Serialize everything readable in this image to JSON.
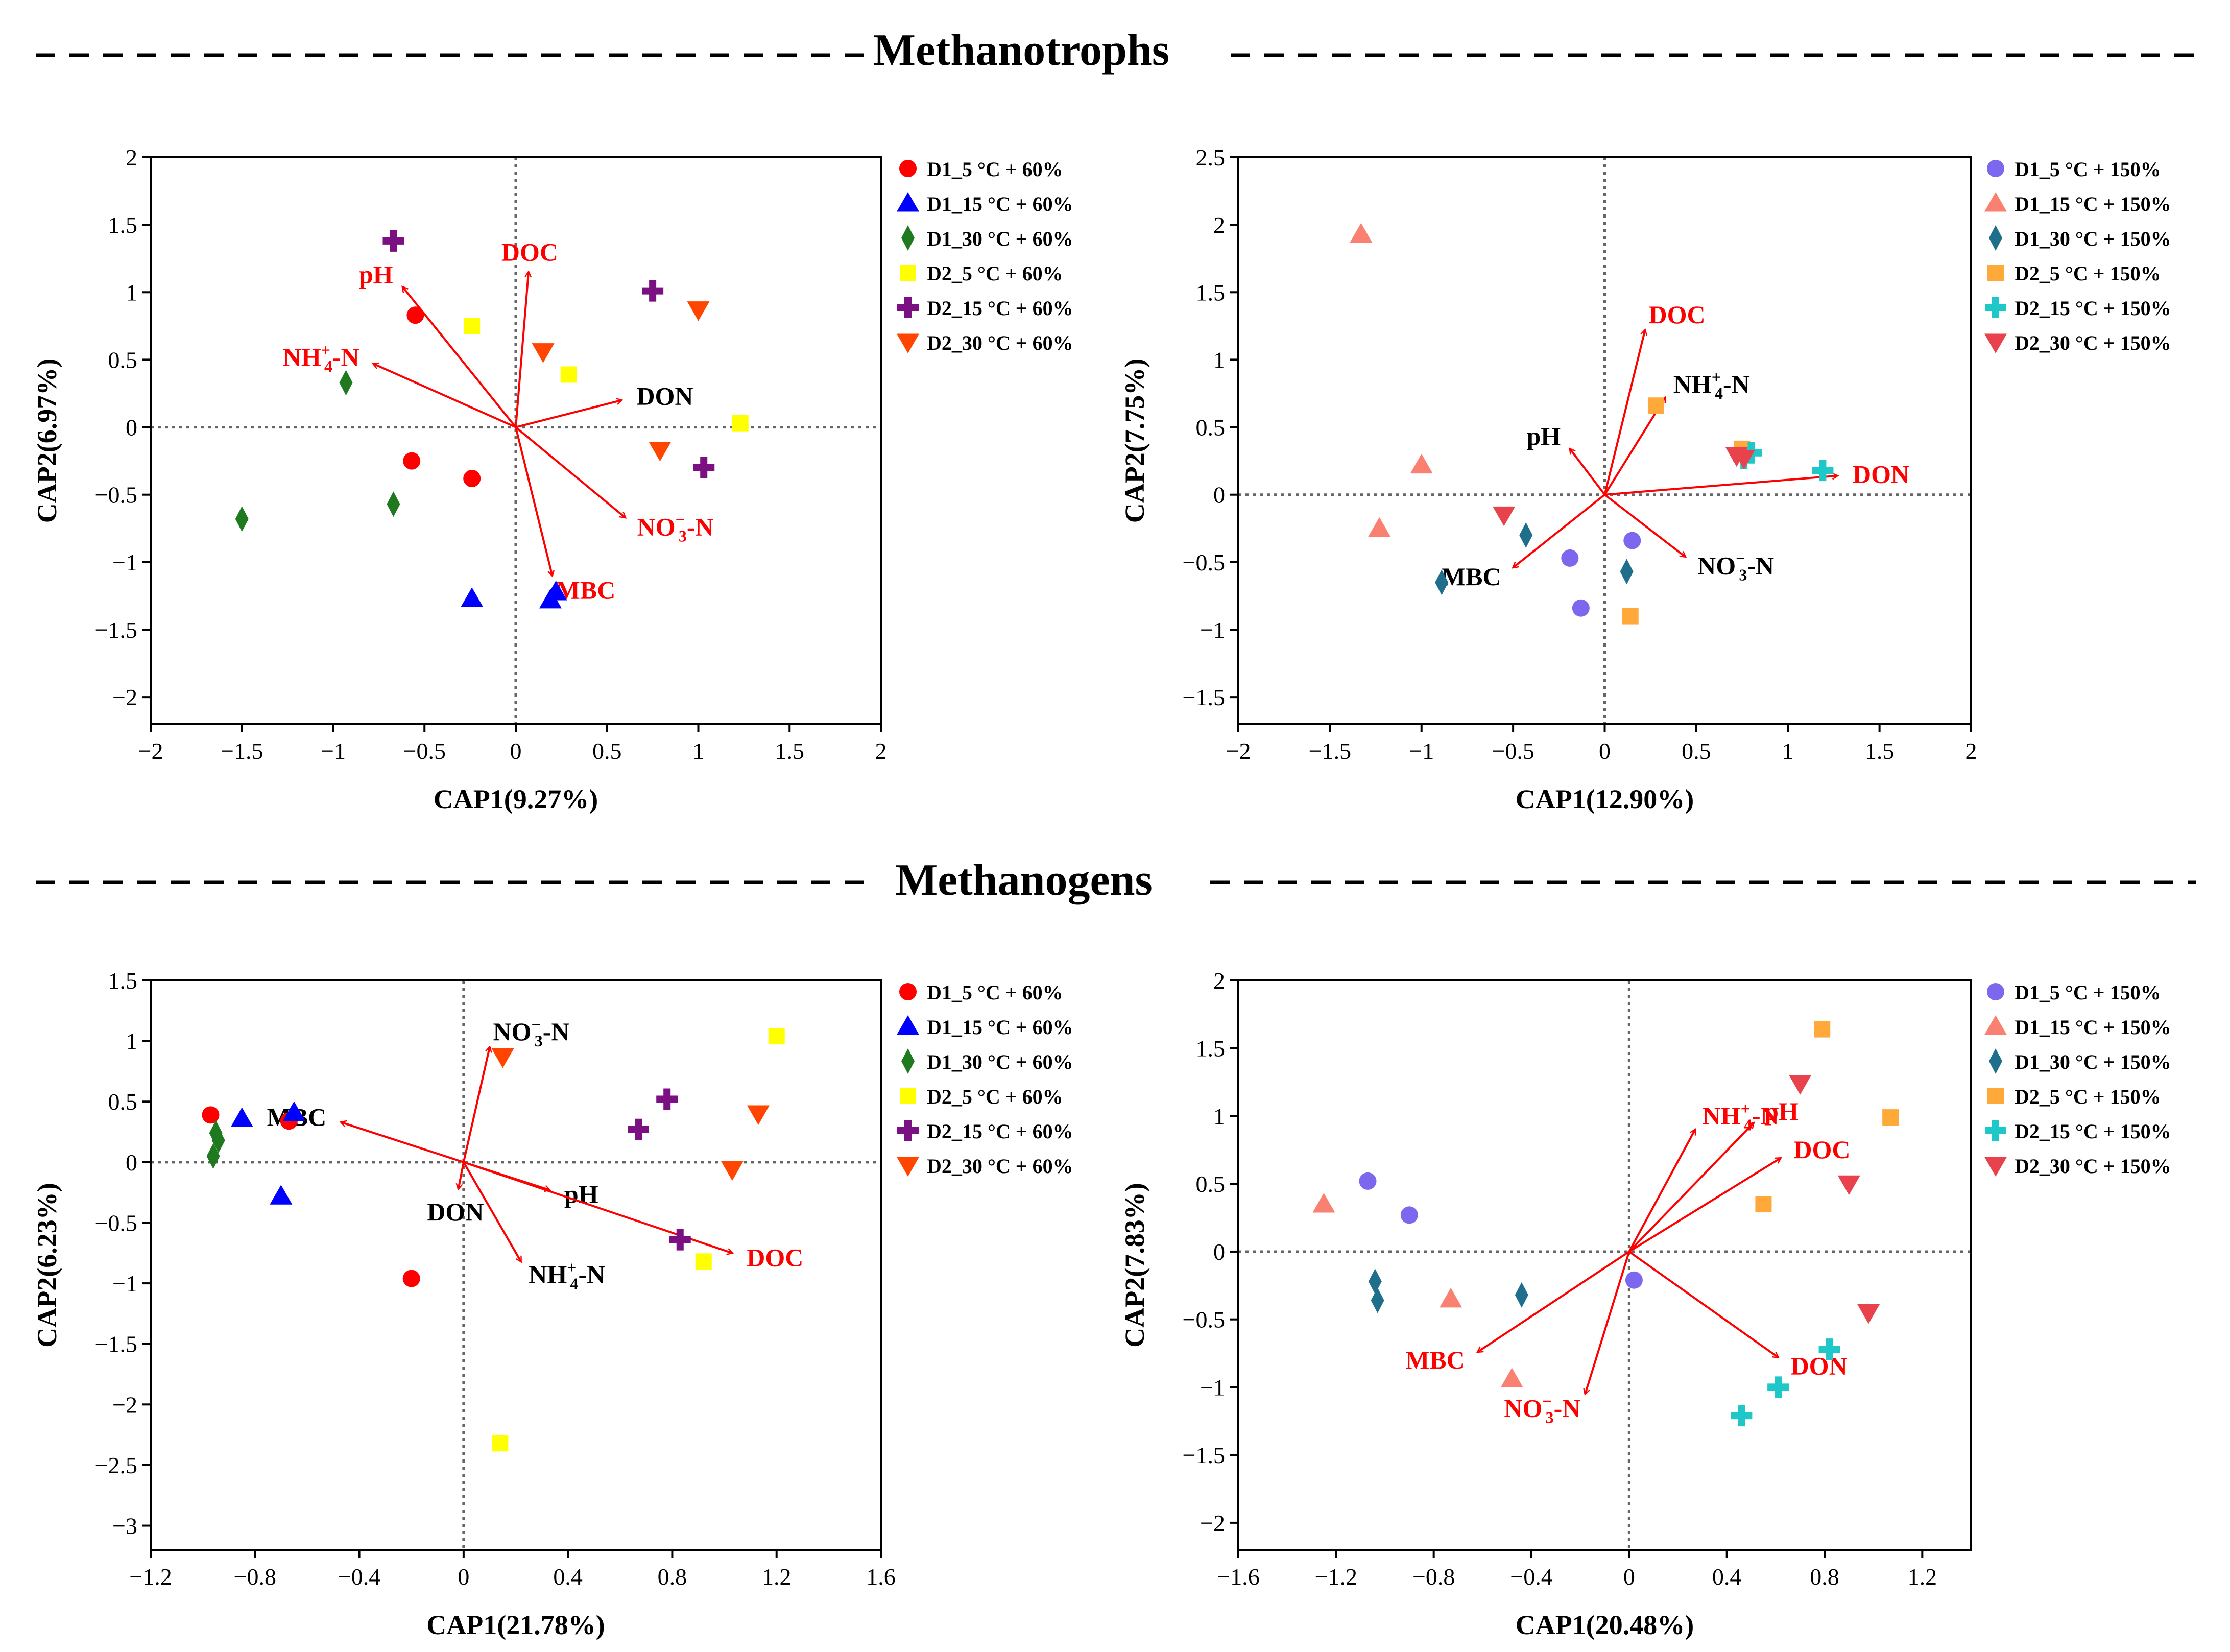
{
  "sections": {
    "top": "Methanotrophs",
    "bottom": "Methanogens"
  },
  "colors": {
    "red": "#ff0000",
    "blue": "#0000ff",
    "green": "#1f7a1f",
    "yellow": "#ffff00",
    "purple": "#7b1082",
    "orange_red": "#ff4500",
    "medium_purple": "#7b68ee",
    "salmon": "#fa8072",
    "teal": "#1f6e8c",
    "orange": "#ffa93a",
    "cyan": "#1ec8c8",
    "crimson": "#e8424c",
    "arrow": "#ff0000",
    "axis": "#000000"
  },
  "chart_data": [
    {
      "type": "scatter",
      "section": "Methanotrophs",
      "xlabel": "CAP1(9.27%)",
      "ylabel": "CAP2(6.97%)",
      "xlim": [
        -2,
        2
      ],
      "ylim": [
        -2.2,
        2
      ],
      "xticks": [
        -2,
        -1.5,
        -1,
        -0.5,
        0,
        0.5,
        1,
        1.5,
        2
      ],
      "xtick_labels": [
        "−2",
        "−1.5",
        "−1",
        "−0.5",
        "0",
        "0.5",
        "1",
        "1.5",
        "2"
      ],
      "yticks": [
        -2,
        -1.5,
        -1,
        -0.5,
        0,
        0.5,
        1,
        1.5,
        2
      ],
      "ytick_labels": [
        "−2",
        "−1.5",
        "−1",
        "−0.5",
        "0",
        "0.5",
        "1",
        "1.5",
        "2"
      ],
      "legend_position": "outside-right",
      "series": [
        {
          "name": "D1_5 °C + 60%",
          "marker": "circle",
          "color": "red",
          "points": [
            [
              -0.55,
              0.83
            ],
            [
              -0.57,
              -0.25
            ],
            [
              -0.24,
              -0.38
            ]
          ]
        },
        {
          "name": "D1_15 °C + 60%",
          "marker": "triangle",
          "color": "blue",
          "points": [
            [
              -0.24,
              -1.27
            ],
            [
              0.19,
              -1.28
            ],
            [
              0.22,
              -1.22
            ]
          ]
        },
        {
          "name": "D1_30 °C + 60%",
          "marker": "diamond",
          "color": "green",
          "points": [
            [
              -0.93,
              0.33
            ],
            [
              -0.67,
              -0.57
            ],
            [
              -1.5,
              -0.68
            ]
          ]
        },
        {
          "name": "D2_5 °C + 60%",
          "marker": "square",
          "color": "yellow",
          "points": [
            [
              -0.24,
              0.75
            ],
            [
              0.29,
              0.39
            ],
            [
              1.23,
              0.03
            ]
          ]
        },
        {
          "name": "D2_15 °C + 60%",
          "marker": "plus",
          "color": "purple",
          "points": [
            [
              -0.67,
              1.38
            ],
            [
              0.75,
              1.01
            ],
            [
              1.03,
              -0.3
            ]
          ]
        },
        {
          "name": "D2_30 °C + 60%",
          "marker": "triangle-down",
          "color": "orange_red",
          "points": [
            [
              0.15,
              0.56
            ],
            [
              1.0,
              0.87
            ],
            [
              0.79,
              -0.17
            ]
          ]
        }
      ],
      "arrows": [
        {
          "label": "pH",
          "x": -0.62,
          "y": 1.04,
          "color": "red"
        },
        {
          "label": "DOC",
          "x": 0.07,
          "y": 1.15,
          "color": "red"
        },
        {
          "label": "NH₄⁺-N",
          "x": -0.78,
          "y": 0.47,
          "color": "red"
        },
        {
          "label": "DON",
          "x": 0.58,
          "y": 0.2,
          "color": "black"
        },
        {
          "label": "NO₃⁻-N",
          "x": 0.6,
          "y": -0.67,
          "color": "red"
        },
        {
          "label": "MBC",
          "x": 0.2,
          "y": -1.1,
          "color": "red"
        }
      ]
    },
    {
      "type": "scatter",
      "section": "Methanotrophs",
      "xlabel": "CAP1(12.90%)",
      "ylabel": "CAP2(7.75%)",
      "xlim": [
        -2,
        2
      ],
      "ylim": [
        -1.7,
        2.5
      ],
      "xticks": [
        -2,
        -1.5,
        -1,
        -0.5,
        0,
        0.5,
        1,
        1.5,
        2
      ],
      "xtick_labels": [
        "−2",
        "−1.5",
        "−1",
        "−0.5",
        "0",
        "0.5",
        "1",
        "1.5",
        "2"
      ],
      "yticks": [
        -1.5,
        -1,
        -0.5,
        0,
        0.5,
        1,
        1.5,
        2,
        2.5
      ],
      "ytick_labels": [
        "−1.5",
        "−1",
        "−0.5",
        "0",
        "0.5",
        "1",
        "1.5",
        "2",
        "2.5"
      ],
      "legend_position": "outside-right",
      "series": [
        {
          "name": "D1_5 °C + 150%",
          "marker": "circle",
          "color": "medium_purple",
          "points": [
            [
              -0.19,
              -0.47
            ],
            [
              -0.13,
              -0.84
            ],
            [
              0.15,
              -0.34
            ]
          ]
        },
        {
          "name": "D1_15 °C + 150%",
          "marker": "triangle",
          "color": "salmon",
          "points": [
            [
              -1.33,
              1.93
            ],
            [
              -1.0,
              0.22
            ],
            [
              -1.23,
              -0.25
            ]
          ]
        },
        {
          "name": "D1_30 °C + 150%",
          "marker": "diamond",
          "color": "teal",
          "points": [
            [
              -0.89,
              -0.65
            ],
            [
              -0.43,
              -0.3
            ],
            [
              0.12,
              -0.57
            ]
          ]
        },
        {
          "name": "D2_5 °C + 150%",
          "marker": "square",
          "color": "orange",
          "points": [
            [
              0.28,
              0.66
            ],
            [
              0.75,
              0.34
            ],
            [
              0.14,
              -0.9
            ]
          ]
        },
        {
          "name": "D2_15 °C + 150%",
          "marker": "plus",
          "color": "cyan",
          "points": [
            [
              0.76,
              0.27
            ],
            [
              0.8,
              0.31
            ],
            [
              1.19,
              0.18
            ]
          ]
        },
        {
          "name": "D2_30 °C + 150%",
          "marker": "triangle-down",
          "color": "crimson",
          "points": [
            [
              -0.55,
              -0.15
            ],
            [
              0.72,
              0.29
            ],
            [
              0.76,
              0.27
            ]
          ]
        }
      ],
      "arrows": [
        {
          "label": "DOC",
          "x": 0.22,
          "y": 1.22,
          "color": "red"
        },
        {
          "label": "NH₄⁺-N",
          "x": 0.33,
          "y": 0.72,
          "color": "black"
        },
        {
          "label": "pH",
          "x": -0.19,
          "y": 0.34,
          "color": "black"
        },
        {
          "label": "DON",
          "x": 1.27,
          "y": 0.14,
          "color": "red"
        },
        {
          "label": "NO₃⁻-N",
          "x": 0.44,
          "y": -0.46,
          "color": "black"
        },
        {
          "label": "MBC",
          "x": -0.5,
          "y": -0.54,
          "color": "black"
        }
      ]
    },
    {
      "type": "scatter",
      "section": "Methanogens",
      "xlabel": "CAP1(21.78%)",
      "ylabel": "CAP2(6.23%)",
      "xlim": [
        -1.2,
        1.6
      ],
      "ylim": [
        -3.2,
        1.5
      ],
      "xticks": [
        -1.2,
        -0.8,
        -0.4,
        0,
        0.4,
        0.8,
        1.2,
        1.6
      ],
      "xtick_labels": [
        "−1.2",
        "−0.8",
        "−0.4",
        "0",
        "0.4",
        "0.8",
        "1.2",
        "1.6"
      ],
      "yticks": [
        -3,
        -2.5,
        -2,
        -1.5,
        -1,
        -0.5,
        0,
        0.5,
        1,
        1.5
      ],
      "ytick_labels": [
        "−3",
        "−2.5",
        "−2",
        "−1.5",
        "−1",
        "−0.5",
        "0",
        "0.5",
        "1",
        "1.5"
      ],
      "legend_position": "outside-right",
      "series": [
        {
          "name": "D1_5 °C + 60%",
          "marker": "circle",
          "color": "red",
          "points": [
            [
              -0.97,
              0.39
            ],
            [
              -0.67,
              0.34
            ],
            [
              -0.2,
              -0.96
            ]
          ]
        },
        {
          "name": "D1_15 °C + 60%",
          "marker": "triangle",
          "color": "blue",
          "points": [
            [
              -0.85,
              0.36
            ],
            [
              -0.65,
              0.41
            ],
            [
              -0.7,
              -0.28
            ]
          ]
        },
        {
          "name": "D1_30 °C + 60%",
          "marker": "diamond",
          "color": "green",
          "points": [
            [
              -0.95,
              0.24
            ],
            [
              -0.94,
              0.18
            ],
            [
              -0.96,
              0.05
            ]
          ]
        },
        {
          "name": "D2_5 °C + 60%",
          "marker": "square",
          "color": "yellow",
          "points": [
            [
              1.2,
              1.04
            ],
            [
              0.92,
              -0.82
            ],
            [
              0.14,
              -2.32
            ]
          ]
        },
        {
          "name": "D2_15 °C + 60%",
          "marker": "plus",
          "color": "purple",
          "points": [
            [
              0.78,
              0.52
            ],
            [
              0.67,
              0.27
            ],
            [
              0.83,
              -0.64
            ]
          ]
        },
        {
          "name": "D2_30 °C + 60%",
          "marker": "triangle-down",
          "color": "orange_red",
          "points": [
            [
              0.15,
              0.87
            ],
            [
              1.13,
              0.4
            ],
            [
              1.03,
              -0.06
            ]
          ]
        }
      ],
      "arrows": [
        {
          "label": "NO₃⁻-N",
          "x": 0.1,
          "y": 0.95,
          "color": "black"
        },
        {
          "label": "MBC",
          "x": -0.47,
          "y": 0.33,
          "color": "black"
        },
        {
          "label": "DON",
          "x": -0.02,
          "y": -0.22,
          "color": "black"
        },
        {
          "label": "pH",
          "x": 0.33,
          "y": -0.23,
          "color": "black"
        },
        {
          "label": "NH₄⁺-N",
          "x": 0.22,
          "y": -0.82,
          "color": "black"
        },
        {
          "label": "DOC",
          "x": 1.03,
          "y": -0.75,
          "color": "red"
        }
      ]
    },
    {
      "type": "scatter",
      "section": "Methanogens",
      "xlabel": "CAP1(20.48%)",
      "ylabel": "CAP2(7.83%)",
      "xlim": [
        -1.6,
        1.4
      ],
      "ylim": [
        -2.2,
        2
      ],
      "xticks": [
        -1.6,
        -1.2,
        -0.8,
        -0.4,
        0,
        0.4,
        0.8,
        1.2
      ],
      "xtick_labels": [
        "−1.6",
        "−1.2",
        "−0.8",
        "−0.4",
        "0",
        "0.4",
        "0.8",
        "1.2"
      ],
      "yticks": [
        -2,
        -1.5,
        -1,
        -0.5,
        0,
        0.5,
        1,
        1.5,
        2
      ],
      "ytick_labels": [
        "−2",
        "−1.5",
        "−1",
        "−0.5",
        "0",
        "0.5",
        "1",
        "1.5",
        "2"
      ],
      "legend_position": "outside-right",
      "series": [
        {
          "name": "D1_5 °C + 150%",
          "marker": "circle",
          "color": "medium_purple",
          "points": [
            [
              -1.07,
              0.52
            ],
            [
              -0.9,
              0.27
            ],
            [
              0.02,
              -0.21
            ]
          ]
        },
        {
          "name": "D1_15 °C + 150%",
          "marker": "triangle",
          "color": "salmon",
          "points": [
            [
              -1.25,
              0.35
            ],
            [
              -0.73,
              -0.35
            ],
            [
              -0.48,
              -0.94
            ]
          ]
        },
        {
          "name": "D1_30 °C + 150%",
          "marker": "diamond",
          "color": "teal",
          "points": [
            [
              -1.04,
              -0.22
            ],
            [
              -1.03,
              -0.36
            ],
            [
              -0.44,
              -0.32
            ]
          ]
        },
        {
          "name": "D2_5 °C + 150%",
          "marker": "square",
          "color": "orange",
          "points": [
            [
              0.79,
              1.64
            ],
            [
              1.07,
              0.99
            ],
            [
              0.55,
              0.35
            ]
          ]
        },
        {
          "name": "D2_15 °C + 150%",
          "marker": "plus",
          "color": "cyan",
          "points": [
            [
              0.82,
              -0.72
            ],
            [
              0.61,
              -1.0
            ],
            [
              0.46,
              -1.21
            ]
          ]
        },
        {
          "name": "D2_30 °C + 150%",
          "marker": "triangle-down",
          "color": "crimson",
          "points": [
            [
              0.7,
              1.24
            ],
            [
              0.9,
              0.5
            ],
            [
              0.98,
              -0.45
            ]
          ]
        }
      ],
      "arrows": [
        {
          "label": "NH₄⁺-N",
          "x": 0.27,
          "y": 0.9,
          "color": "red"
        },
        {
          "label": "pH",
          "x": 0.51,
          "y": 0.95,
          "color": "red"
        },
        {
          "label": "DOC",
          "x": 0.62,
          "y": 0.69,
          "color": "red"
        },
        {
          "label": "MBC",
          "x": -0.62,
          "y": -0.74,
          "color": "red"
        },
        {
          "label": "NO₃⁻-N",
          "x": -0.18,
          "y": -1.05,
          "color": "red"
        },
        {
          "label": "DON",
          "x": 0.61,
          "y": -0.78,
          "color": "red"
        }
      ]
    }
  ]
}
